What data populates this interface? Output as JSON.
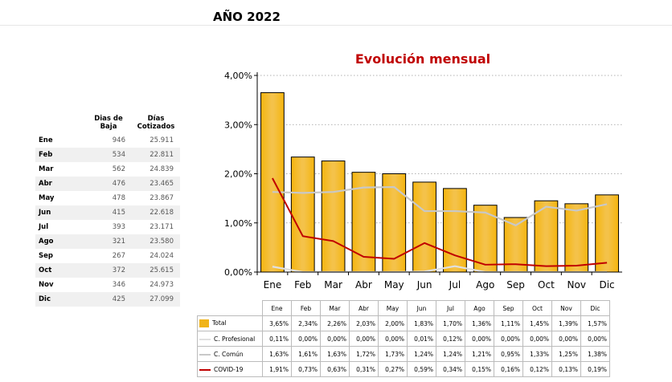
{
  "page": {
    "title": "AÑO 2022"
  },
  "summary_table": {
    "headers": [
      "",
      "Dias de Baja",
      "Días Cotizados"
    ],
    "rows": [
      {
        "month": "Ene",
        "baja": "946",
        "cotizados": "25.911"
      },
      {
        "month": "Feb",
        "baja": "534",
        "cotizados": "22.811"
      },
      {
        "month": "Mar",
        "baja": "562",
        "cotizados": "24.839"
      },
      {
        "month": "Abr",
        "baja": "476",
        "cotizados": "23.465"
      },
      {
        "month": "May",
        "baja": "478",
        "cotizados": "23.867"
      },
      {
        "month": "Jun",
        "baja": "415",
        "cotizados": "22.618"
      },
      {
        "month": "Jul",
        "baja": "393",
        "cotizados": "23.171"
      },
      {
        "month": "Ago",
        "baja": "321",
        "cotizados": "23.580"
      },
      {
        "month": "Sep",
        "baja": "267",
        "cotizados": "24.024"
      },
      {
        "month": "Oct",
        "baja": "372",
        "cotizados": "25.615"
      },
      {
        "month": "Nov",
        "baja": "346",
        "cotizados": "24.973"
      },
      {
        "month": "Dic",
        "baja": "425",
        "cotizados": "27.099"
      }
    ]
  },
  "chart_data": {
    "type": "bar",
    "title": "Evolución mensual",
    "categories": [
      "Ene",
      "Feb",
      "Mar",
      "Abr",
      "May",
      "Jun",
      "Jul",
      "Ago",
      "Sep",
      "Oct",
      "Nov",
      "Dic"
    ],
    "ylim": [
      0,
      4
    ],
    "yticks": [
      "0,00%",
      "1,00%",
      "2,00%",
      "3,00%",
      "4,00%"
    ],
    "grid": true,
    "series": [
      {
        "name": "Total",
        "kind": "bar",
        "color": "#f0b419",
        "values": [
          3.65,
          2.34,
          2.26,
          2.03,
          2.0,
          1.83,
          1.7,
          1.36,
          1.11,
          1.45,
          1.39,
          1.57
        ],
        "labels": [
          "3,65%",
          "2,34%",
          "2,26%",
          "2,03%",
          "2,00%",
          "1,83%",
          "1,70%",
          "1,36%",
          "1,11%",
          "1,45%",
          "1,39%",
          "1,57%"
        ]
      },
      {
        "name": "C. Profesional",
        "kind": "line",
        "color": "#e0e0e0",
        "values": [
          0.11,
          0.0,
          0.0,
          0.0,
          0.0,
          0.01,
          0.12,
          0.0,
          0.0,
          0.0,
          0.0,
          0.0
        ],
        "labels": [
          "0,11%",
          "0,00%",
          "0,00%",
          "0,00%",
          "0,00%",
          "0,01%",
          "0,12%",
          "0,00%",
          "0,00%",
          "0,00%",
          "0,00%",
          "0,00%"
        ]
      },
      {
        "name": "C. Común",
        "kind": "line",
        "color": "#c8c8c8",
        "values": [
          1.63,
          1.61,
          1.63,
          1.72,
          1.73,
          1.24,
          1.24,
          1.21,
          0.95,
          1.33,
          1.25,
          1.38
        ],
        "labels": [
          "1,63%",
          "1,61%",
          "1,63%",
          "1,72%",
          "1,73%",
          "1,24%",
          "1,24%",
          "1,21%",
          "0,95%",
          "1,33%",
          "1,25%",
          "1,38%"
        ]
      },
      {
        "name": "COVID-19",
        "kind": "line",
        "color": "#c00000",
        "values": [
          1.91,
          0.73,
          0.63,
          0.31,
          0.27,
          0.59,
          0.34,
          0.15,
          0.16,
          0.12,
          0.13,
          0.19
        ],
        "labels": [
          "1,91%",
          "0,73%",
          "0,63%",
          "0,31%",
          "0,27%",
          "0,59%",
          "0,34%",
          "0,15%",
          "0,16%",
          "0,12%",
          "0,13%",
          "0,19%"
        ]
      }
    ]
  }
}
